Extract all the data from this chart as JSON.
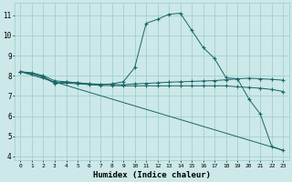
{
  "xlabel": "Humidex (Indice chaleur)",
  "bg_color": "#cce8e8",
  "grid_color": "#99cccc",
  "line_color": "#1a6666",
  "xlim": [
    -0.5,
    23.5
  ],
  "ylim": [
    3.8,
    11.6
  ],
  "xticks": [
    0,
    1,
    2,
    3,
    4,
    5,
    6,
    7,
    8,
    9,
    10,
    11,
    12,
    13,
    14,
    15,
    16,
    17,
    18,
    19,
    20,
    21,
    22,
    23
  ],
  "yticks": [
    4,
    5,
    6,
    7,
    8,
    9,
    10,
    11
  ],
  "curve1_x": [
    0,
    1,
    2,
    3,
    4,
    5,
    6,
    7,
    8,
    9,
    10,
    11,
    12,
    13,
    14,
    15,
    16,
    17,
    18,
    19,
    20,
    21,
    22,
    23
  ],
  "curve1_y": [
    8.2,
    8.15,
    8.0,
    7.75,
    7.7,
    7.65,
    7.6,
    7.55,
    7.6,
    7.7,
    8.4,
    10.6,
    10.8,
    11.05,
    11.1,
    10.25,
    9.4,
    8.85,
    7.9,
    7.85,
    6.85,
    6.1,
    4.5,
    4.3
  ],
  "curve2_x": [
    0,
    1,
    2,
    3,
    4,
    5,
    6,
    7,
    8,
    9,
    10,
    11,
    12,
    13,
    14,
    15,
    16,
    17,
    18,
    19,
    20,
    21,
    22,
    23
  ],
  "curve2_y": [
    8.2,
    8.1,
    7.95,
    7.65,
    7.68,
    7.65,
    7.6,
    7.58,
    7.57,
    7.55,
    7.6,
    7.62,
    7.65,
    7.68,
    7.7,
    7.72,
    7.74,
    7.76,
    7.8,
    7.85,
    7.88,
    7.85,
    7.82,
    7.78
  ],
  "curve3_x": [
    0,
    1,
    2,
    3,
    4,
    5,
    6,
    7,
    8,
    9,
    10,
    11,
    12,
    13,
    14,
    15,
    16,
    17,
    18,
    19,
    20,
    21,
    22,
    23
  ],
  "curve3_y": [
    8.2,
    8.1,
    7.92,
    7.62,
    7.64,
    7.6,
    7.56,
    7.52,
    7.51,
    7.5,
    7.5,
    7.5,
    7.5,
    7.5,
    7.5,
    7.5,
    7.5,
    7.5,
    7.5,
    7.45,
    7.42,
    7.38,
    7.32,
    7.22
  ],
  "curve4_x": [
    0,
    23
  ],
  "curve4_y": [
    8.2,
    4.3
  ]
}
